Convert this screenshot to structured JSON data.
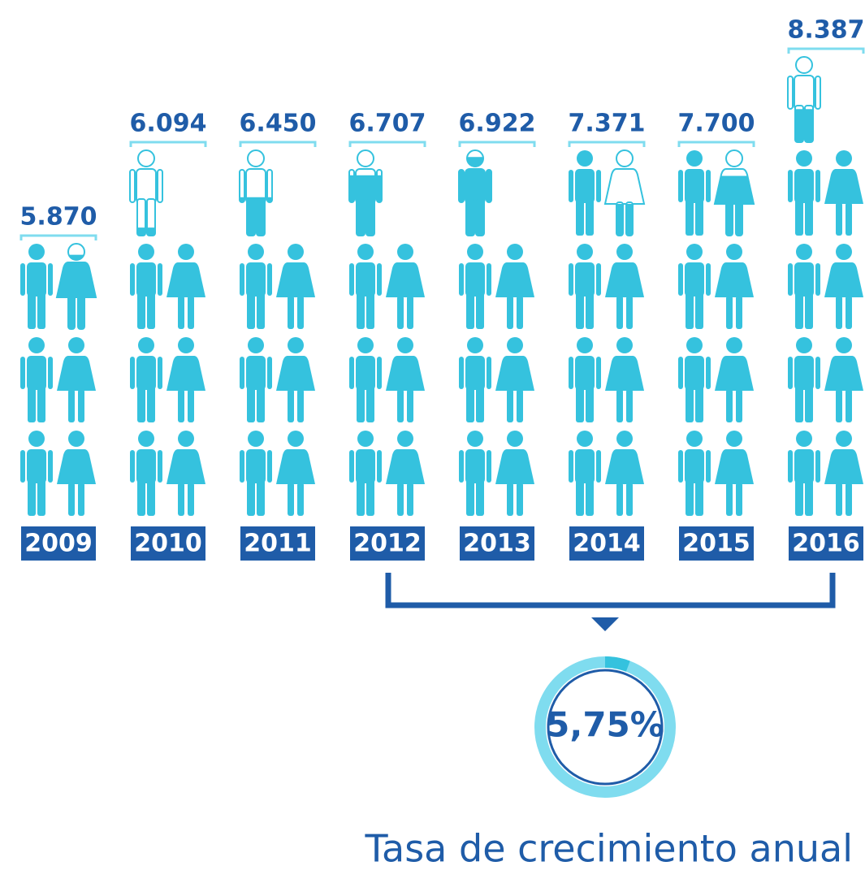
{
  "chart_data": {
    "type": "pictogram",
    "categories": [
      "2009",
      "2010",
      "2011",
      "2012",
      "2013",
      "2014",
      "2015",
      "2016"
    ],
    "values": [
      5870,
      6094,
      6450,
      6707,
      6922,
      7371,
      7700,
      8387
    ],
    "value_labels": [
      "5.870",
      "6.094",
      "6.450",
      "6.707",
      "6.922",
      "7.371",
      "7.700",
      "8.387"
    ],
    "color": "#35c2de",
    "growth_rate": {
      "value": 5.75,
      "label": "5,75%",
      "caption": "Tasa de crecimiento anual"
    }
  }
}
